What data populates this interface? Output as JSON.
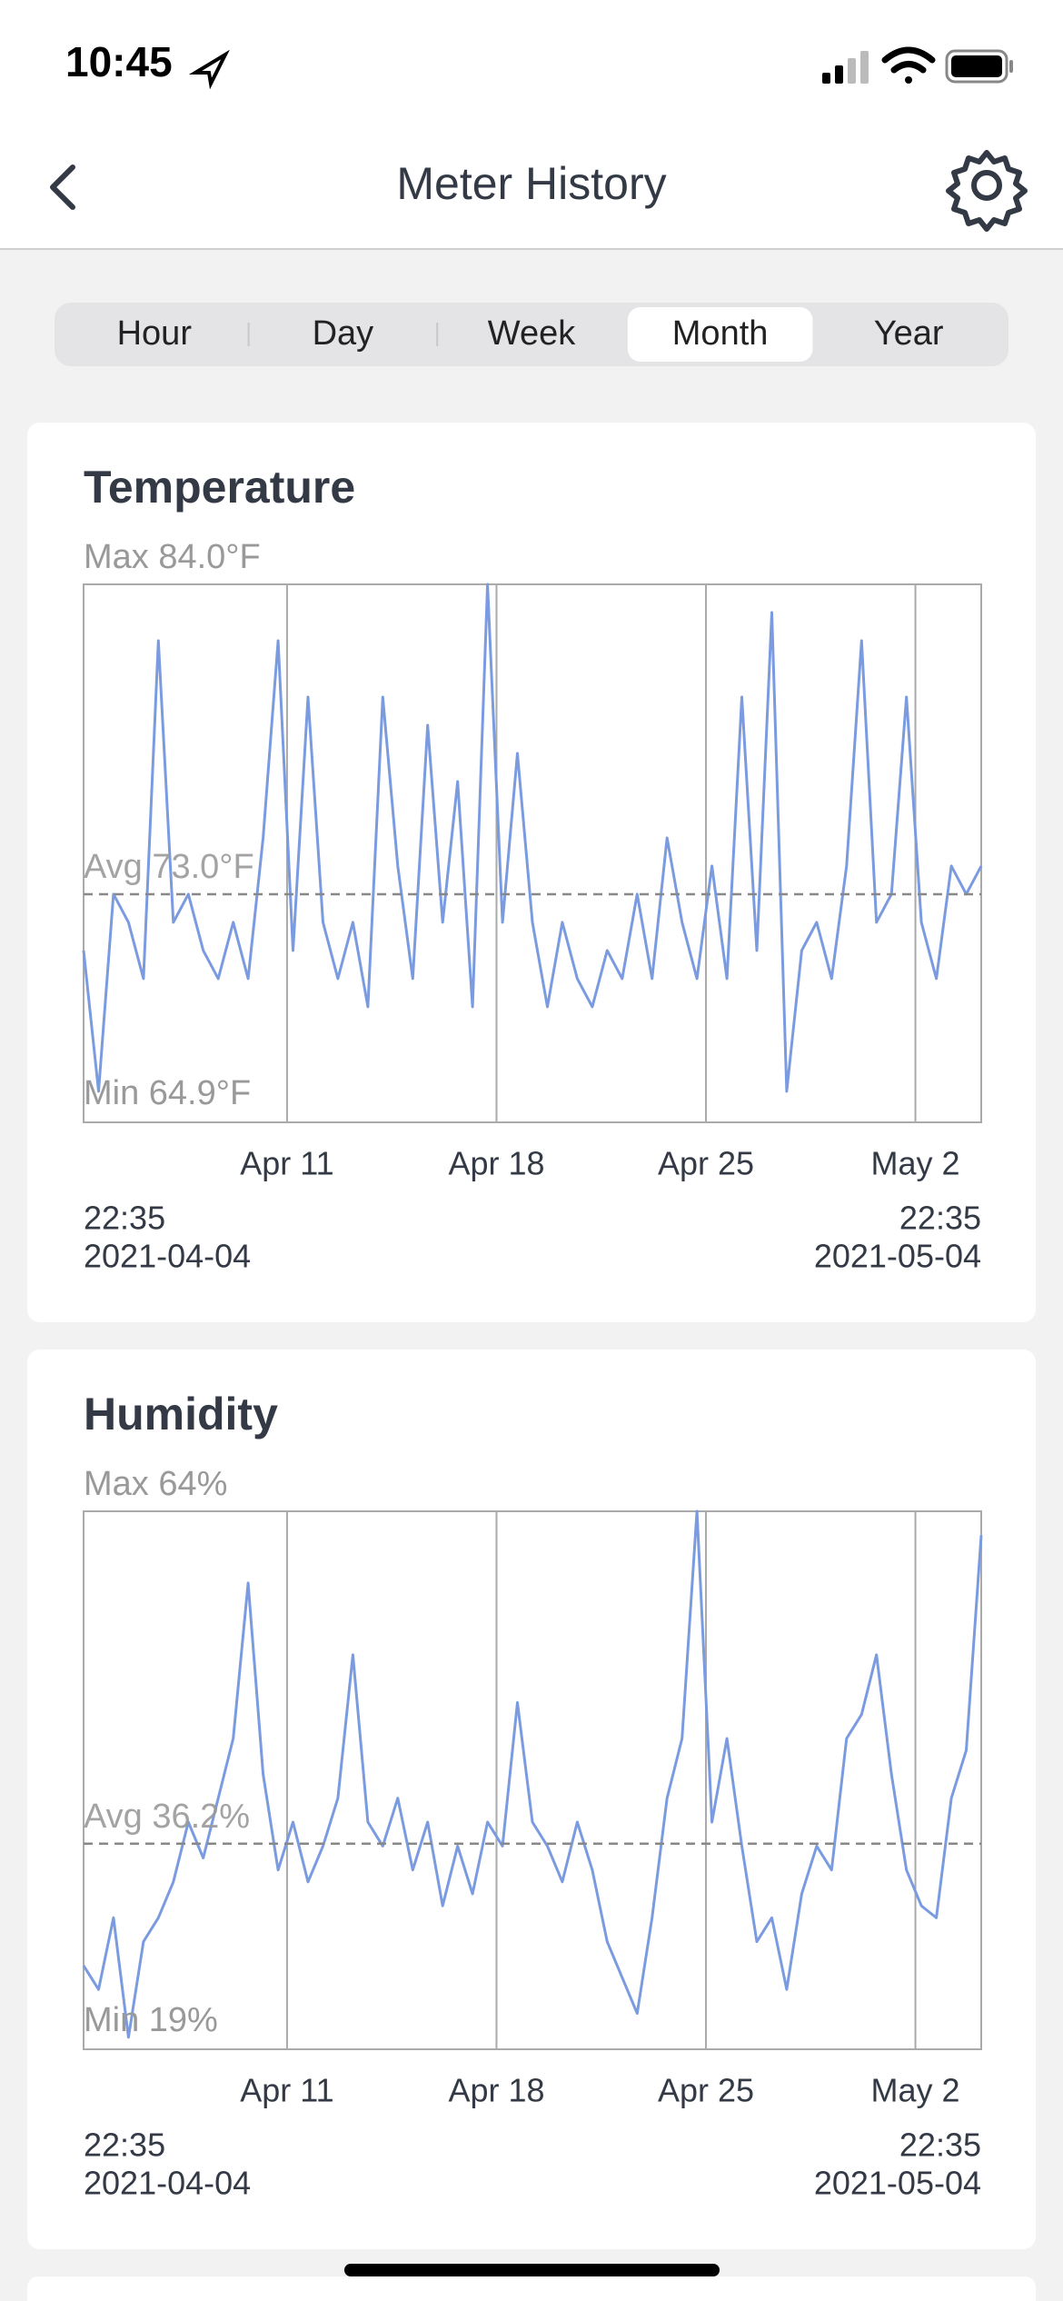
{
  "status": {
    "time": "10:45"
  },
  "nav": {
    "title": "Meter History"
  },
  "tabs": {
    "items": [
      "Hour",
      "Day",
      "Week",
      "Month",
      "Year"
    ],
    "selected": 3
  },
  "chart_data": [
    {
      "type": "line",
      "title": "Temperature",
      "color": "#7b9be0",
      "max_label": "Max 84.0°F",
      "avg": 73.0,
      "avg_label": "Avg 73.0°F",
      "min_label": "Min 64.9°F",
      "ylim": [
        64.9,
        84.0
      ],
      "xlim": [
        0,
        30
      ],
      "xticks": [
        {
          "value": 6.8,
          "label": "Apr 11"
        },
        {
          "value": 13.8,
          "label": "Apr 18"
        },
        {
          "value": 20.8,
          "label": "Apr 25"
        },
        {
          "value": 27.8,
          "label": "May 2"
        }
      ],
      "start": {
        "time": "22:35",
        "date": "2021-04-04"
      },
      "end": {
        "time": "22:35",
        "date": "2021-05-04"
      },
      "values": [
        71,
        66,
        73,
        72,
        70,
        82,
        72,
        73,
        71,
        70,
        72,
        70,
        75,
        82,
        71,
        80,
        72,
        70,
        72,
        69,
        80,
        74,
        70,
        79,
        72,
        77,
        69,
        84,
        72,
        78,
        72,
        69,
        72,
        70,
        69,
        71,
        70,
        73,
        70,
        75,
        72,
        70,
        74,
        70,
        80,
        71,
        83,
        66,
        71,
        72,
        70,
        74,
        82,
        72,
        73,
        80,
        72,
        70,
        74,
        73,
        74
      ]
    },
    {
      "type": "line",
      "title": "Humidity",
      "color": "#7b9be0",
      "max_label": "Max 64%",
      "avg": 36.2,
      "avg_label": "Avg 36.2%",
      "min_label": "Min 19%",
      "ylim": [
        19,
        64
      ],
      "xlim": [
        0,
        30
      ],
      "xticks": [
        {
          "value": 6.8,
          "label": "Apr 11"
        },
        {
          "value": 13.8,
          "label": "Apr 18"
        },
        {
          "value": 20.8,
          "label": "Apr 25"
        },
        {
          "value": 27.8,
          "label": "May 2"
        }
      ],
      "start": {
        "time": "22:35",
        "date": "2021-04-04"
      },
      "end": {
        "time": "22:35",
        "date": "2021-05-04"
      },
      "values": [
        26,
        24,
        30,
        20,
        28,
        30,
        33,
        38,
        35,
        40,
        45,
        58,
        42,
        34,
        38,
        33,
        36,
        40,
        52,
        38,
        36,
        40,
        34,
        38,
        31,
        36,
        32,
        38,
        36,
        48,
        38,
        36,
        33,
        38,
        34,
        28,
        25,
        22,
        30,
        40,
        45,
        64,
        38,
        45,
        36,
        28,
        30,
        24,
        32,
        36,
        34,
        45,
        47,
        52,
        42,
        34,
        31,
        30,
        40,
        44,
        62
      ]
    }
  ]
}
